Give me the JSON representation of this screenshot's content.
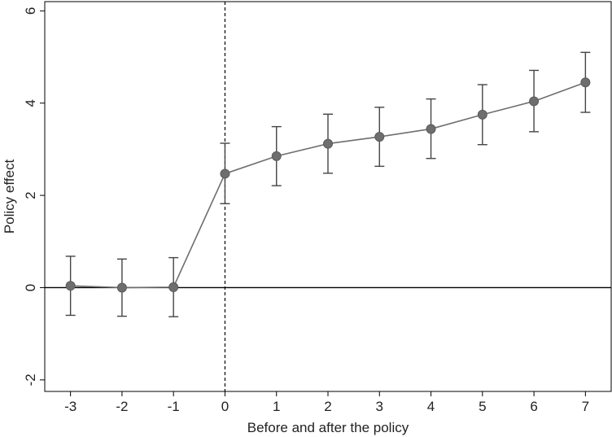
{
  "chart_data": {
    "type": "line",
    "title": "",
    "xlabel": "Before and after the policy",
    "ylabel": "Policy effect",
    "xlim": [
      -3.5,
      7.5
    ],
    "ylim": [
      -2.25,
      6.2
    ],
    "x_ticks": [
      -3,
      -2,
      -1,
      0,
      1,
      2,
      3,
      4,
      5,
      6,
      7
    ],
    "y_ticks": [
      -2,
      0,
      2,
      4,
      6
    ],
    "x_tick_labels": [
      "-3",
      "-2",
      "-1",
      "0",
      "1",
      "2",
      "3",
      "4",
      "5",
      "6",
      "7"
    ],
    "y_tick_labels": [
      "-2",
      "0",
      "2",
      "4",
      "6"
    ],
    "reference_line_y": 0,
    "reference_line_x": 0,
    "grid": false,
    "series": [
      {
        "x": [
          -3,
          -2,
          -1,
          0,
          1,
          2,
          3,
          4,
          5,
          6,
          7
        ],
        "y": [
          0.04,
          0.0,
          0.01,
          2.47,
          2.85,
          3.12,
          3.27,
          3.44,
          3.75,
          4.04,
          4.45
        ],
        "lower": [
          -0.6,
          -0.62,
          -0.63,
          1.82,
          2.21,
          2.48,
          2.63,
          2.8,
          3.1,
          3.38,
          3.8
        ],
        "upper": [
          0.68,
          0.62,
          0.65,
          3.13,
          3.49,
          3.76,
          3.91,
          4.09,
          4.4,
          4.71,
          5.1
        ],
        "color": "#6e6e6e"
      }
    ]
  }
}
